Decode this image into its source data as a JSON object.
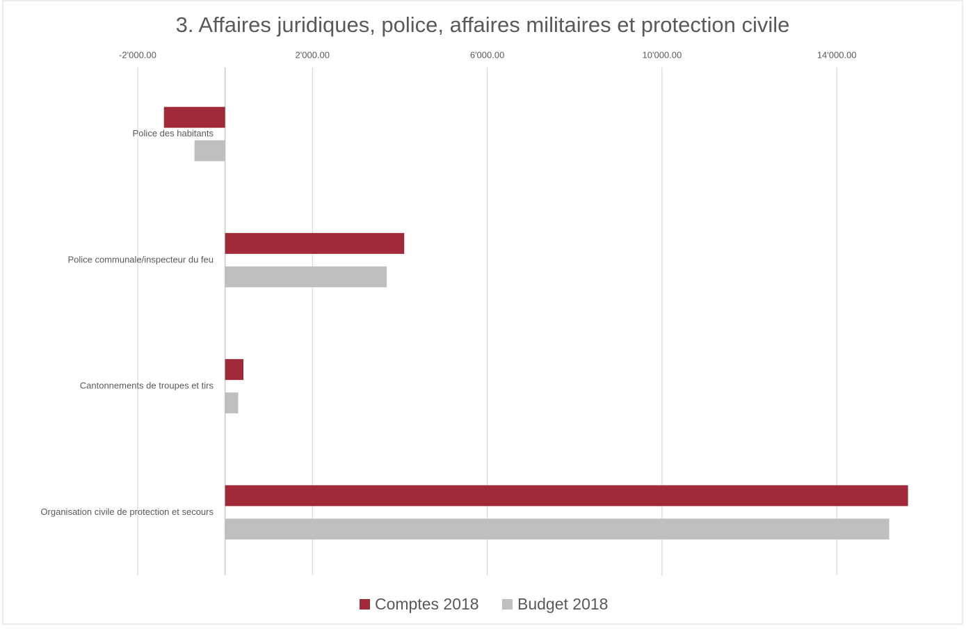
{
  "chart_data": {
    "type": "hbar",
    "title": "3. Affaires juridiques, police, affaires militaires et protection civile",
    "categories": [
      "Police des habitants",
      "Police communale/inspecteur du feu",
      "Cantonnements de troupes et tirs",
      "Organisation civile de protection et secours"
    ],
    "series": [
      {
        "name": "Comptes 2018",
        "color": "#a12a3a",
        "values": [
          -1400,
          4100,
          420,
          15630
        ]
      },
      {
        "name": "Budget 2018",
        "color": "#bfbfbf",
        "values": [
          -700,
          3700,
          300,
          15200
        ]
      }
    ],
    "xlim": [
      -2000,
      15700
    ],
    "xticks": [
      {
        "value": -2000,
        "label": "-2'000.00"
      },
      {
        "value": 2000,
        "label": "2'000.00"
      },
      {
        "value": 6000,
        "label": "6'000.00"
      },
      {
        "value": 10000,
        "label": "10'000.00"
      },
      {
        "value": 14000,
        "label": "14'000.00"
      }
    ],
    "grid": true,
    "legend": "bottom"
  }
}
